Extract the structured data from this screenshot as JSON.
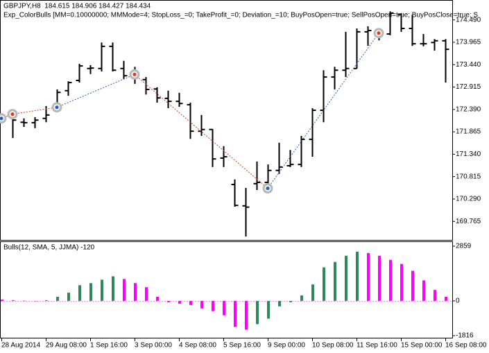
{
  "chart_data": [
    {
      "type": "ohlc",
      "title": "GBPJPY,H8  184.615 184.906 184.427 184.434",
      "subtitle": "Exp_ColorBulls [MM=0.10000000; MMMode=4; StopLoss_=0; TakeProfit_=0; Deviation_=10; BuyPosOpen=true; SellPosOpen=true; BuyPosClose=true; S",
      "categories": [
        "28 Aug 2014",
        null,
        null,
        null,
        "29 Aug 08:00",
        null,
        null,
        null,
        "1 Sep 16:00",
        null,
        null,
        null,
        "3 Sep 00:00",
        null,
        null,
        null,
        "4 Sep 08:00",
        null,
        null,
        null,
        "5 Sep 16:00",
        null,
        null,
        null,
        "9 Sep 00:00",
        null,
        null,
        null,
        "10 Sep 08:00",
        null,
        null,
        null,
        "11 Sep 16:00",
        null,
        null,
        null,
        "15 Sep 00:00",
        null,
        null,
        null,
        "16 Sep 08:00"
      ],
      "open": [
        172.18,
        172.26,
        172.09,
        172.08,
        172.18,
        172.5,
        172.83,
        173.07,
        173.35,
        173.35,
        173.87,
        173.35,
        173.23,
        173.09,
        172.87,
        172.65,
        172.58,
        172.5,
        171.88,
        171.92,
        171.25,
        170.63,
        170.13,
        170.65,
        170.68,
        170.96,
        171.07,
        171.1,
        171.69,
        172.37,
        173.15,
        173.31,
        173.35,
        174.21,
        174.24,
        174.16,
        174.61,
        174.29,
        173.93,
        173.96,
        174.0
      ],
      "high": [
        172.26,
        172.34,
        172.18,
        172.21,
        172.47,
        172.86,
        173.05,
        173.46,
        173.43,
        173.96,
        173.96,
        173.53,
        173.39,
        173.15,
        172.91,
        172.83,
        172.78,
        172.55,
        172.26,
        171.93,
        171.53,
        170.75,
        170.55,
        171.17,
        171.1,
        171.61,
        171.44,
        171.77,
        172.42,
        173.31,
        173.39,
        174.21,
        174.29,
        174.34,
        174.29,
        174.69,
        174.65,
        174.61,
        174.16,
        174.04,
        174.04
      ],
      "low": [
        172.09,
        171.72,
        171.98,
        171.95,
        172.09,
        172.34,
        172.71,
        173.02,
        173.22,
        173.28,
        173.28,
        173.1,
        172.99,
        172.74,
        172.55,
        172.42,
        172.45,
        171.7,
        171.77,
        171.04,
        171.04,
        170.11,
        169.41,
        170.5,
        170.63,
        170.88,
        171.04,
        171.04,
        171.28,
        172.09,
        172.86,
        173.15,
        173.35,
        173.88,
        174.01,
        174.13,
        174.21,
        173.88,
        173.87,
        173.77,
        173.02
      ],
      "close": [
        172.14,
        172.14,
        172.08,
        172.14,
        172.26,
        172.79,
        173.02,
        173.41,
        173.36,
        173.87,
        173.31,
        173.18,
        173.15,
        172.86,
        172.66,
        172.58,
        172.53,
        171.88,
        171.92,
        171.23,
        171.28,
        170.14,
        170.1,
        170.68,
        170.96,
        171.04,
        171.1,
        171.69,
        172.37,
        173.15,
        173.31,
        173.35,
        174.21,
        174.24,
        174.16,
        174.65,
        174.29,
        173.93,
        173.93,
        174.0,
        173.8
      ],
      "color": "#000000",
      "markers": {
        "x": [
          0,
          1,
          5,
          12,
          24,
          34
        ],
        "values": [
          172.18,
          172.28,
          172.44,
          173.21,
          170.54,
          174.18
        ],
        "colors": [
          "#1f5fbf",
          "#d83b1e",
          "#1f5fbf",
          "#d83b1e",
          "#1f5fbf",
          "#d83b1e"
        ],
        "line_colors": [
          "#d83b1e",
          "#d83b1e",
          "#1f5fbf",
          "#d83b1e",
          "#1f5fbf"
        ]
      },
      "ylim": [
        169.33,
        174.94
      ],
      "yticks": [
        169.765,
        {
          "value": 170.29,
          "label": "170.290"
        },
        170.815,
        {
          "value": 171.34,
          "label": "171.340"
        },
        171.865,
        {
          "value": 172.39,
          "label": "172.390"
        },
        172.915,
        {
          "value": 173.44,
          "label": "173.440"
        },
        173.965,
        {
          "value": 174.49,
          "label": "174.490"
        }
      ]
    },
    {
      "type": "bar",
      "title": "Bulls(12, SMA, 5, JJMA) -120",
      "values": [
        70,
        40,
        10,
        0,
        36,
        214,
        429,
        822,
        929,
        1108,
        1287,
        1144,
        929,
        715,
        214,
        -71,
        -143,
        -214,
        -393,
        -536,
        -751,
        -1358,
        -1501,
        -1215,
        -929,
        -286,
        -71,
        286,
        858,
        1751,
        2037,
        2359,
        2573,
        2502,
        2359,
        2144,
        1930,
        1573,
        1072,
        572,
        214
      ],
      "up_color": "#2e8b57",
      "down_color": "#ff00ff",
      "ylim": [
        -1924,
        3075
      ],
      "yticks": [
        -1816,
        0,
        2859
      ]
    }
  ]
}
